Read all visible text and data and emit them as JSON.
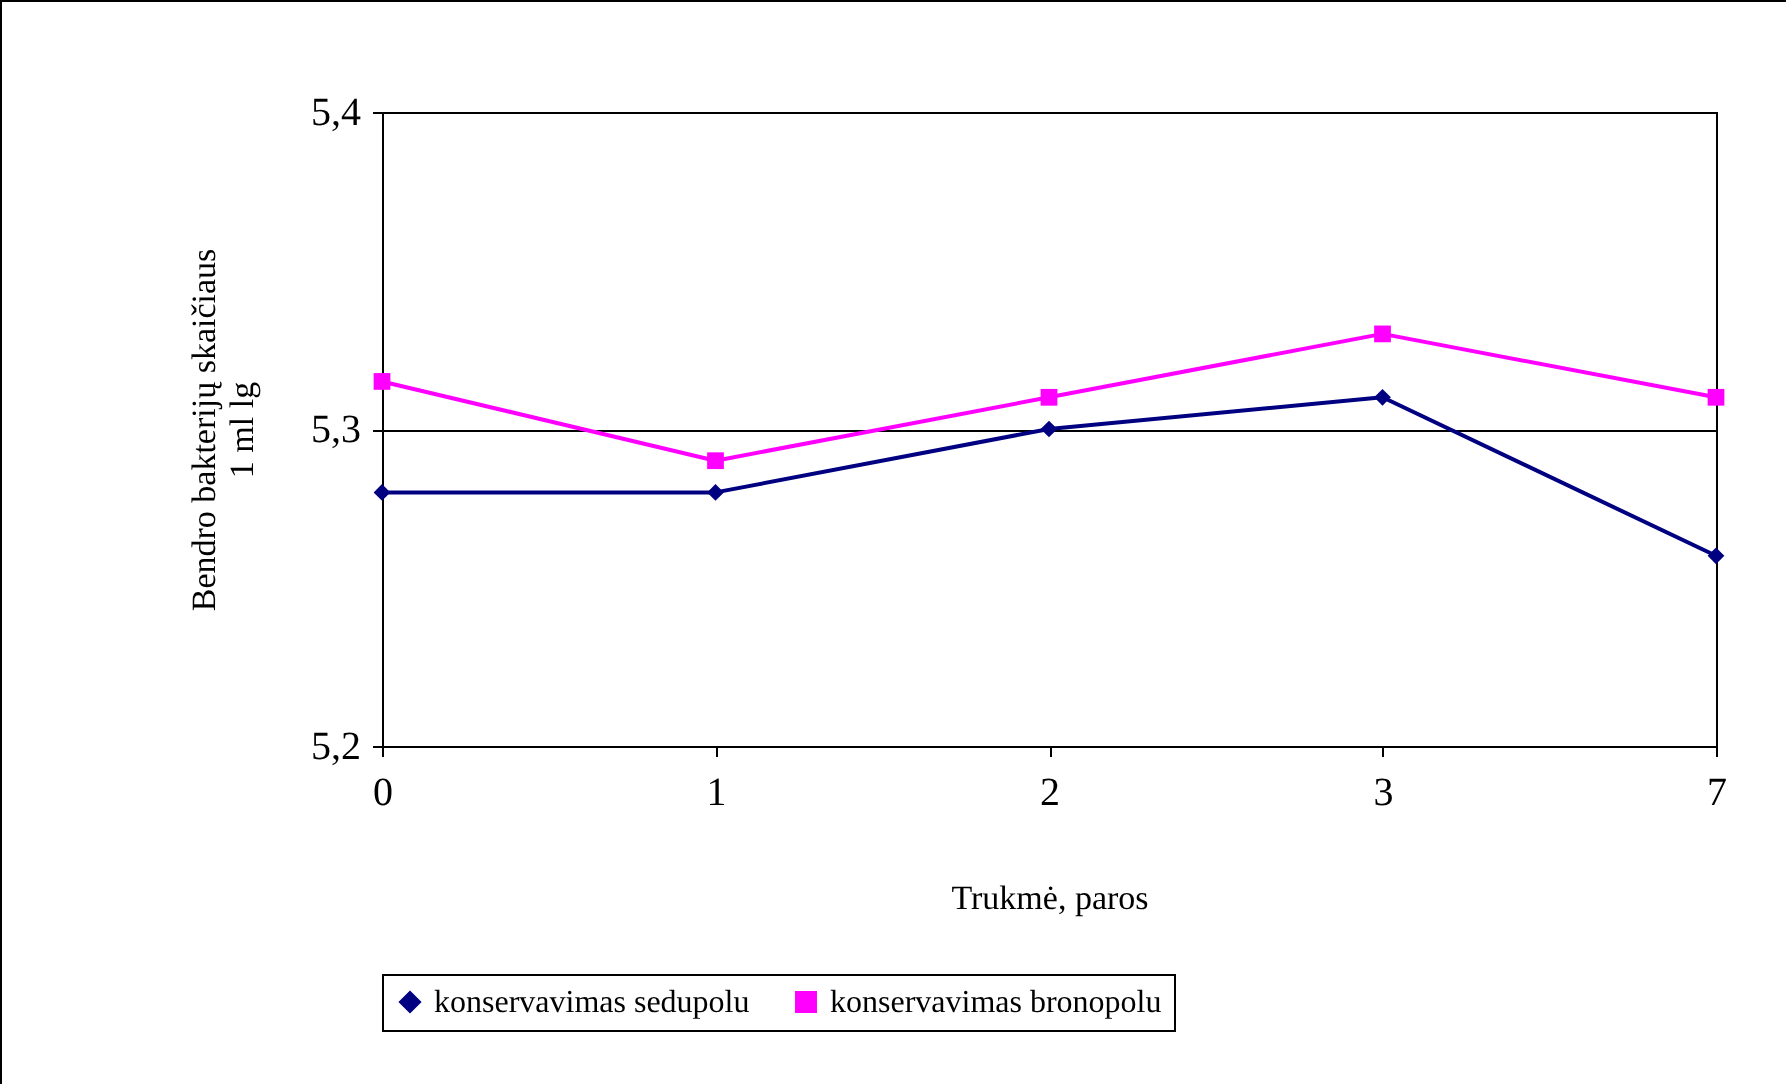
{
  "chart_data": {
    "type": "line",
    "xlabel": "Trukmė, paros",
    "ylabel": "Bendro bakterijų skaičiaus 1 ml lg",
    "categories": [
      "0",
      "1",
      "2",
      "3",
      "7"
    ],
    "series": [
      {
        "name": "konservavimas sedupolu",
        "color": "#000080",
        "marker": "diamond",
        "values": [
          5.28,
          5.28,
          5.3,
          5.31,
          5.26
        ]
      },
      {
        "name": "konservavimas bronopolu",
        "color": "#ff00ff",
        "marker": "square",
        "values": [
          5.315,
          5.29,
          5.31,
          5.33,
          5.31
        ]
      }
    ],
    "ylim": [
      5.2,
      5.4
    ],
    "yticks": [
      {
        "value": 5.2,
        "label": "5,2"
      },
      {
        "value": 5.3,
        "label": "5,3"
      },
      {
        "value": 5.4,
        "label": "5,4"
      }
    ],
    "grid": "y",
    "legend": "bottom",
    "line_style": "solid"
  }
}
